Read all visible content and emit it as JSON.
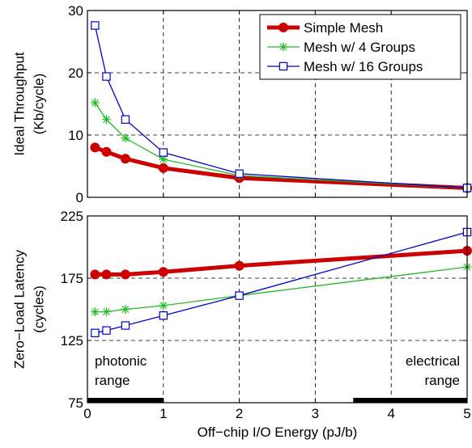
{
  "chart_data": [
    {
      "type": "line",
      "ylabel": [
        "Ideal Throughput",
        "(Kb/cycle)"
      ],
      "xlim": [
        0,
        5
      ],
      "ylim": [
        0,
        30
      ],
      "yticks": [
        0,
        10,
        20,
        30
      ],
      "grid": true,
      "legend_position": "top-right",
      "series": [
        {
          "name": "Simple Mesh",
          "color": "#cc0000",
          "marker": "filled-circle",
          "x": [
            0.1,
            0.25,
            0.5,
            1,
            2,
            5
          ],
          "y": [
            8.0,
            7.3,
            6.2,
            4.7,
            3.1,
            1.5
          ]
        },
        {
          "name": "Mesh w/ 4 Groups",
          "color": "#22bb22",
          "marker": "asterisk",
          "x": [
            0.1,
            0.25,
            0.5,
            1,
            2,
            5
          ],
          "y": [
            15.2,
            12.5,
            9.5,
            6.1,
            3.5,
            1.5
          ]
        },
        {
          "name": "Mesh w/ 16 Groups",
          "color": "#0000cc",
          "marker": "open-square",
          "x": [
            0.1,
            0.25,
            0.5,
            1,
            2,
            5
          ],
          "y": [
            27.6,
            19.4,
            12.5,
            7.2,
            3.8,
            1.5
          ]
        }
      ]
    },
    {
      "type": "line",
      "xlabel": "Off−chip I/O Energy (pJ/b)",
      "ylabel": [
        "Zero−Load Latency",
        "(cycles)"
      ],
      "xlim": [
        0,
        5
      ],
      "ylim": [
        75,
        225
      ],
      "xticks": [
        0,
        1,
        2,
        3,
        4,
        5
      ],
      "yticks": [
        75,
        125,
        175,
        225
      ],
      "grid": true,
      "series": [
        {
          "name": "Simple Mesh",
          "color": "#cc0000",
          "marker": "filled-circle",
          "x": [
            0.1,
            0.25,
            0.5,
            1,
            2,
            5
          ],
          "y": [
            178,
            178,
            178,
            180,
            185,
            197
          ]
        },
        {
          "name": "Mesh w/ 4 Groups",
          "color": "#22bb22",
          "marker": "asterisk",
          "x": [
            0.1,
            0.25,
            0.5,
            1,
            2,
            5
          ],
          "y": [
            148,
            148,
            150,
            153,
            161,
            184
          ]
        },
        {
          "name": "Mesh w/ 16 Groups",
          "color": "#0000cc",
          "marker": "open-square",
          "x": [
            0.1,
            0.25,
            0.5,
            1,
            2,
            5
          ],
          "y": [
            131,
            133,
            137,
            145,
            161,
            212
          ]
        }
      ],
      "annotations": [
        {
          "lines": [
            "photonic",
            "range"
          ],
          "x_range": [
            0,
            1
          ]
        },
        {
          "lines": [
            "electrical",
            "range"
          ],
          "x_range": [
            3.5,
            5
          ]
        }
      ]
    }
  ]
}
